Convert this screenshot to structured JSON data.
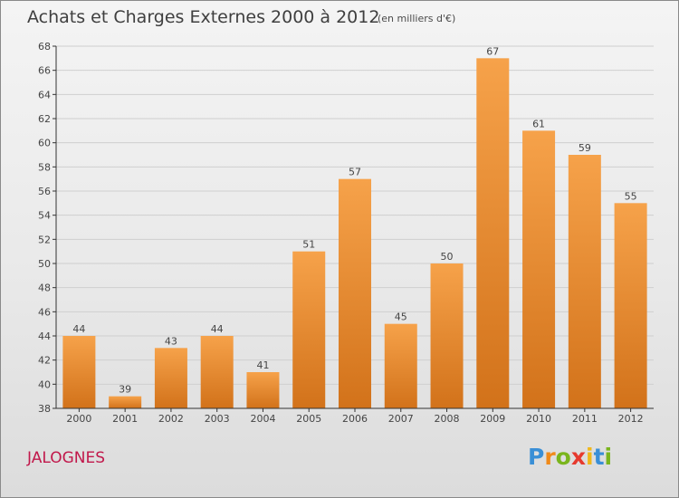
{
  "header": {
    "title": "Achats et Charges Externes 2000 à 2012",
    "subtitle": "(en milliers d'€)"
  },
  "footer": {
    "commune": "JALOGNES",
    "logo_letters": [
      "P",
      "r",
      "o",
      "x",
      "i",
      "t",
      "i"
    ],
    "logo_colors": [
      "#3a8fd6",
      "#f08a1a",
      "#7ab51d",
      "#e63a2e",
      "#f0b81a",
      "#3a8fd6",
      "#7ab51d"
    ]
  },
  "colors": {
    "bar_top": "#f6a24a",
    "bar_bottom": "#d2721a",
    "grid": "#cfcfcf",
    "axis": "#333333"
  },
  "chart_data": {
    "type": "bar",
    "title": "Achats et Charges Externes 2000 à 2012",
    "categories": [
      "2000",
      "2001",
      "2002",
      "2003",
      "2004",
      "2005",
      "2006",
      "2007",
      "2008",
      "2009",
      "2010",
      "2011",
      "2012"
    ],
    "values": [
      44,
      39,
      43,
      44,
      41,
      51,
      57,
      45,
      50,
      67,
      61,
      59,
      55
    ],
    "ylim": [
      38,
      68
    ],
    "yticks": [
      38,
      40,
      42,
      44,
      46,
      48,
      50,
      52,
      54,
      56,
      58,
      60,
      62,
      64,
      66,
      68
    ],
    "grid": true,
    "xlabel": "",
    "ylabel": ""
  }
}
